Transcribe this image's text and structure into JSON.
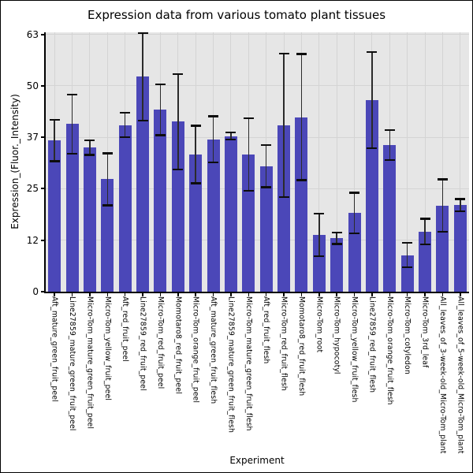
{
  "figure": {
    "background": "#ffffff",
    "border_color": "#000000"
  },
  "chart_data": {
    "type": "bar",
    "title": "Expression data from various tomato plant tissues",
    "xlabel": "Experiment",
    "ylabel": "Expression_(Fluor._Intensity)",
    "ylim": [
      0,
      63
    ],
    "grid": true,
    "legend_position": "none",
    "bar_color": "#4b47b8",
    "panel_color": "#e6e6e6",
    "grid_color": "#d4d4d4",
    "error_line_color": "#2b2b2b",
    "error_cap_color": "#0d0d0d",
    "yticks": [
      {
        "value": 0,
        "label": "0"
      },
      {
        "value": 12.5,
        "label": "12"
      },
      {
        "value": 25,
        "label": "25"
      },
      {
        "value": 37.5,
        "label": "37"
      },
      {
        "value": 50,
        "label": "50"
      },
      {
        "value": 62.5,
        "label": "63"
      }
    ],
    "categories": [
      "Aft_mature_green_fruit_peel",
      "Line27859_mature_green_fruit_peel",
      "Micro-Tom_mature_green_fruit_peel",
      "Micro-Tom_yellow_fruit_peel",
      "Aft_red_fruit_peel",
      "Line27859_red_fruit_peel",
      "Micro-Tom_red_fruit_peel",
      "Momotaro8_red_fruit_peel",
      "Micro-Tom_orange_fruit_peel",
      "Aft_mature_green_fruit_flesh",
      "Line27859_mature_green_fruit_flesh",
      "Micro-Tom_mature_green_fruit_flesh",
      "Aft_red_fruit_flesh",
      "Micro-Tom_red_fruit_flesh",
      "Momotaro8_red_fruit_flesh",
      "Micro-Tom_root",
      "Micro-Tom_hypocotyl",
      "Micro-Tom_yellow_fruit_flesh",
      "Line27859_red_fruit_flesh",
      "Micro-Tom_orange_fruit_flesh",
      "Micro-Tom_cotyledon",
      "Micro-Tom_3rd_leaf",
      "All_leaves_of_3-week-old_Micro-Tom_plant",
      "All_leaves_of_5-week-old_Micro-Tom_plant"
    ],
    "values": [
      36.7,
      40.7,
      35.0,
      27.3,
      40.5,
      52.2,
      44.2,
      41.3,
      33.3,
      37.0,
      37.8,
      33.3,
      30.5,
      40.4,
      42.4,
      13.8,
      13.0,
      19.1,
      46.5,
      35.6,
      8.9,
      14.6,
      20.9,
      21.0
    ],
    "errors": [
      5.0,
      7.2,
      1.8,
      6.3,
      3.0,
      10.6,
      6.2,
      11.6,
      7.0,
      5.6,
      0.9,
      8.8,
      5.1,
      17.4,
      15.3,
      5.2,
      1.4,
      4.9,
      11.7,
      3.6,
      3.0,
      3.1,
      6.4,
      1.5
    ]
  }
}
